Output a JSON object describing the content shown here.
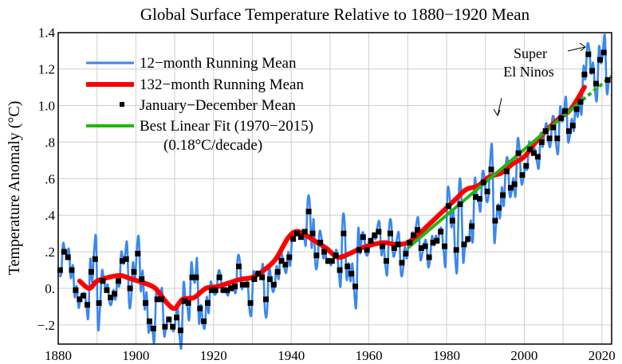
{
  "chart_data": {
    "type": "line",
    "title": "Global Surface Temperature Relative to 1880−1920 Mean",
    "xlabel": "",
    "ylabel": "Temperature Anomaly (°C)",
    "xlim": [
      1880,
      2022.5
    ],
    "ylim": [
      -0.25,
      1.4
    ],
    "grid": true,
    "x_ticks": [
      1880,
      1900,
      1920,
      1940,
      1960,
      1980,
      2000,
      2020
    ],
    "x_tick_labels": [
      "1880",
      "1900",
      "1920",
      "1940",
      "1960",
      "1980",
      "2000",
      "2020"
    ],
    "x_grid_step": 10,
    "y_ticks": [
      -0.2,
      0.0,
      0.2,
      0.4,
      0.6,
      0.8,
      1.0,
      1.2,
      1.4
    ],
    "y_tick_labels": [
      "−.2",
      "0.",
      ".2",
      ".4",
      ".6",
      ".8",
      "1.0",
      "1.2",
      "1.4"
    ],
    "legend": {
      "position": "top-left",
      "entries": [
        {
          "label": "12−month Running Mean",
          "color": "#3a87f0",
          "style": "line"
        },
        {
          "label": "132−month Running Mean",
          "color": "#ff0000",
          "style": "thick-line"
        },
        {
          "label": "January−December Mean",
          "color": "#000000",
          "style": "square-marker"
        },
        {
          "label": "Best Linear Fit (1970−2015)",
          "color": "#1fb811",
          "style": "line"
        }
      ],
      "note": "(0.18°C/decade)"
    },
    "annotations": [
      {
        "text": "Super",
        "target": "2016 peak"
      },
      {
        "text": "El Ninos",
        "target": "1998 and 2016 peaks"
      }
    ],
    "annual_mean": {
      "name": "January−December Mean",
      "x_start": 1880,
      "values": [
        0.1,
        0.2,
        0.17,
        0.1,
        -0.01,
        -0.06,
        -0.04,
        -0.09,
        0.09,
        0.16,
        -0.08,
        0.04,
        -0.01,
        -0.05,
        -0.03,
        0.04,
        0.15,
        0.16,
        -0.0,
        0.09,
        0.19,
        0.05,
        -0.08,
        -0.18,
        -0.22,
        -0.06,
        -0.06,
        -0.21,
        -0.17,
        -0.21,
        -0.16,
        -0.23,
        -0.07,
        -0.08,
        0.06,
        0.06,
        -0.11,
        -0.18,
        -0.08,
        -0.01,
        -0.01,
        0.06,
        -0.01,
        -0.01,
        -0.0,
        0.01,
        0.12,
        0.02,
        0.02,
        -0.08,
        0.05,
        0.08,
        0.06,
        -0.06,
        0.05,
        0.02,
        0.09,
        0.15,
        0.13,
        0.17,
        0.27,
        0.3,
        0.28,
        0.31,
        0.42,
        0.3,
        0.18,
        0.25,
        0.2,
        0.15,
        0.15,
        0.18,
        0.1,
        0.3,
        0.12,
        0.08,
        0.01,
        0.21,
        0.28,
        0.21,
        0.26,
        0.29,
        0.31,
        0.23,
        0.15,
        0.3,
        0.22,
        0.24,
        0.14,
        0.19,
        0.25,
        0.29,
        0.32,
        0.22,
        0.23,
        0.17,
        0.25,
        0.26,
        0.31,
        0.23,
        0.45,
        0.37,
        0.21,
        0.46,
        0.24,
        0.27,
        0.34,
        0.5,
        0.49,
        0.58,
        0.53,
        0.65,
        0.37,
        0.44,
        0.51,
        0.64,
        0.55,
        0.57,
        0.74,
        0.62,
        0.67,
        0.76,
        0.74,
        0.72,
        0.8,
        0.86,
        0.82,
        0.88,
        0.82,
        0.93,
        0.97,
        0.86,
        0.89,
        0.98,
        1.02,
        1.17,
        1.28,
        1.19,
        1.12,
        1.25,
        1.29,
        1.14
      ]
    },
    "running_12mo": {
      "name": "12−month Running Mean",
      "description": "monthly-resolution running mean oscillating around annual means, 1880–2021.5"
    },
    "running_132mo": {
      "name": "132−month Running Mean",
      "x": [
        1885.5,
        1888,
        1890,
        1893,
        1896,
        1899,
        1902,
        1905,
        1908,
        1910,
        1912,
        1915,
        1918,
        1921,
        1924,
        1927,
        1930,
        1933,
        1936,
        1939,
        1941,
        1943,
        1946,
        1949,
        1952,
        1955,
        1958,
        1961,
        1964,
        1967,
        1970,
        1973,
        1976,
        1979,
        1982,
        1985,
        1988,
        1991,
        1994,
        1997,
        2000,
        2003,
        2006,
        2009,
        2012,
        2015.5
      ],
      "values": [
        0.04,
        0.0,
        0.04,
        0.06,
        0.07,
        0.05,
        0.03,
        0.0,
        -0.08,
        -0.11,
        -0.06,
        -0.05,
        0.0,
        0.01,
        0.03,
        0.05,
        0.06,
        0.1,
        0.16,
        0.27,
        0.31,
        0.3,
        0.26,
        0.22,
        0.17,
        0.19,
        0.22,
        0.24,
        0.25,
        0.24,
        0.25,
        0.3,
        0.36,
        0.42,
        0.48,
        0.54,
        0.56,
        0.61,
        0.63,
        0.68,
        0.72,
        0.8,
        0.87,
        0.93,
        0.98,
        1.1
      ]
    },
    "linear_fit": {
      "name": "Best Linear Fit (1970−2015)",
      "slope_per_decade": 0.18,
      "solid": {
        "x": [
          1970,
          2015
        ],
        "y": [
          0.22,
          1.03
        ]
      },
      "dashed_extension": {
        "x": [
          2015,
          2022.5
        ],
        "y": [
          1.03,
          1.16
        ]
      }
    }
  }
}
